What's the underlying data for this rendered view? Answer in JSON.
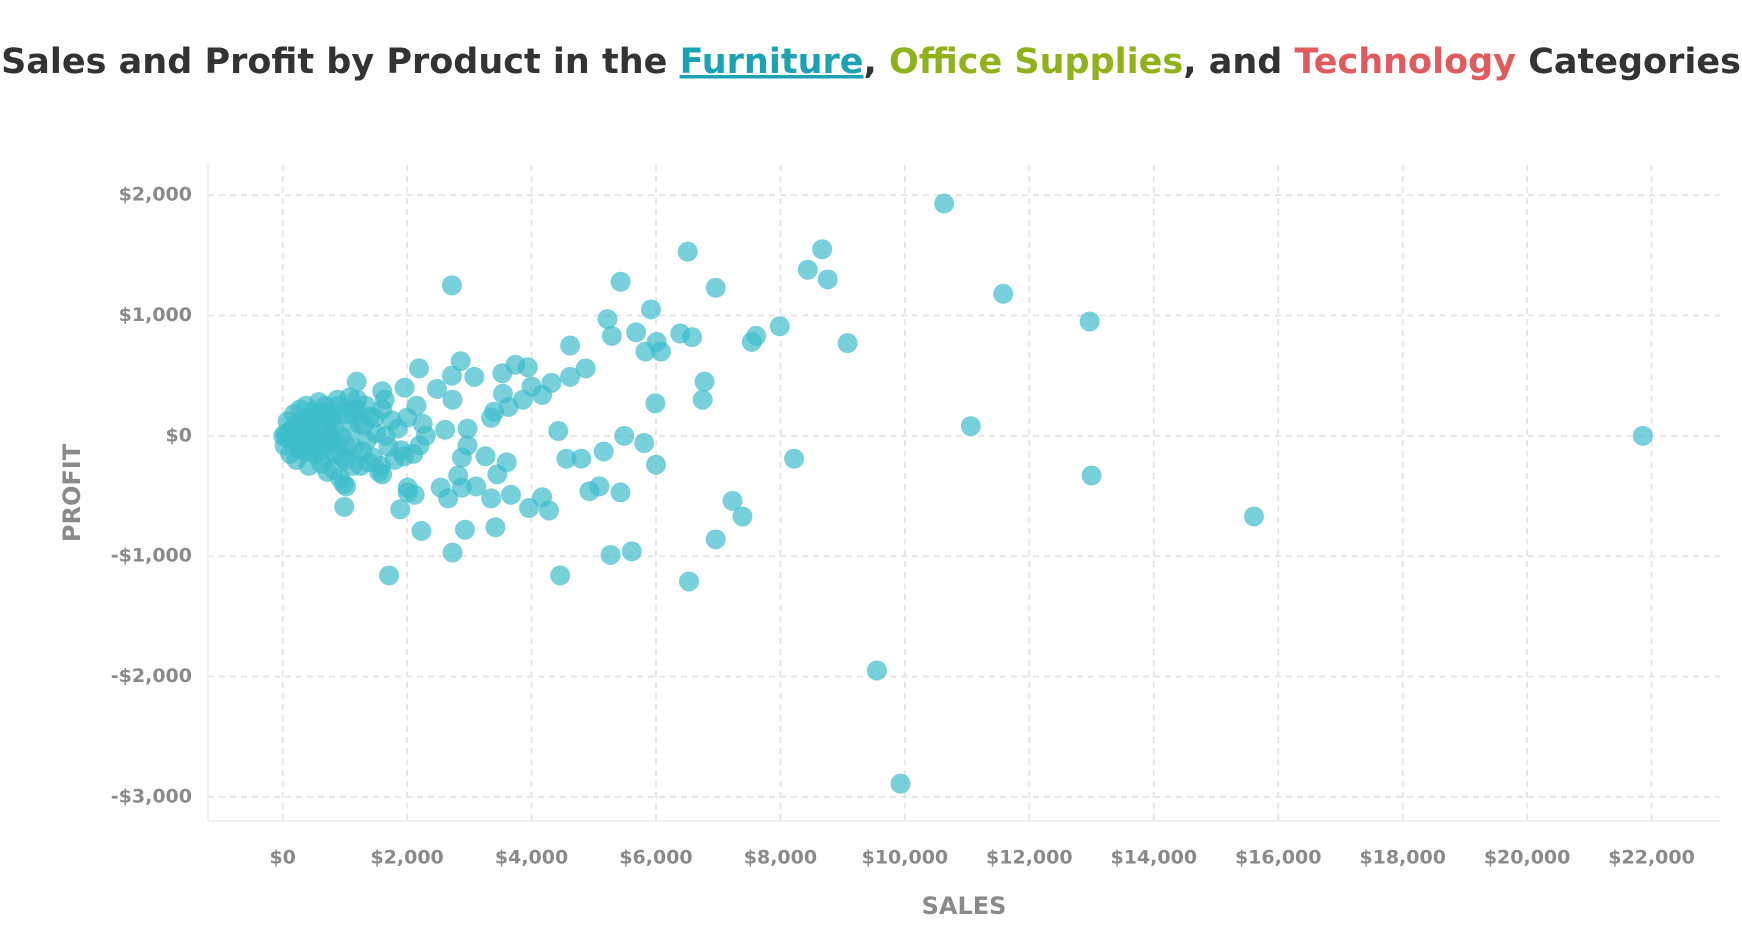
{
  "chart_data": {
    "type": "scatter",
    "title_segments": [
      {
        "text": "Sales and Profit by Product in the ",
        "color": "#333333"
      },
      {
        "text": "Furniture",
        "color": "#1ba3b3"
      },
      {
        "text": ", ",
        "color": "#333333"
      },
      {
        "text": "Office Supplies",
        "color": "#8fb21a"
      },
      {
        "text": ", and ",
        "color": "#333333"
      },
      {
        "text": "Technology",
        "color": "#e05a5e"
      },
      {
        "text": " Categories",
        "color": "#333333"
      }
    ],
    "x_label": "SALES",
    "y_label": "PROFIT",
    "xlim": [
      -1200,
      23100
    ],
    "ylim": [
      -3200,
      2250
    ],
    "xticks": [
      {
        "value": 0,
        "label": "$0"
      },
      {
        "value": 2000,
        "label": "$2,000"
      },
      {
        "value": 4000,
        "label": "$4,000"
      },
      {
        "value": 6000,
        "label": "$6,000"
      },
      {
        "value": 8000,
        "label": "$8,000"
      },
      {
        "value": 10000,
        "label": "$10,000"
      },
      {
        "value": 12000,
        "label": "$12,000"
      },
      {
        "value": 14000,
        "label": "$14,000"
      },
      {
        "value": 16000,
        "label": "$16,000"
      },
      {
        "value": 18000,
        "label": "$18,000"
      },
      {
        "value": 20000,
        "label": "$20,000"
      },
      {
        "value": 22000,
        "label": "$22,000"
      }
    ],
    "yticks": [
      {
        "value": 2000,
        "label": "$2,000"
      },
      {
        "value": 1000,
        "label": "$1,000"
      },
      {
        "value": 0,
        "label": "$0"
      },
      {
        "value": -1000,
        "label": "-$1,000"
      },
      {
        "value": -2000,
        "label": "-$2,000"
      },
      {
        "value": -3000,
        "label": "-$3,000"
      }
    ],
    "grid": true,
    "color": "#3dbccb",
    "x": [
      10630,
      6510,
      8670,
      8440,
      8760,
      2720,
      5430,
      6960,
      11580,
      12970,
      5920,
      5220,
      7990,
      6390,
      5680,
      5290,
      6580,
      7610,
      7540,
      6010,
      9080,
      5830,
      6080,
      4620,
      2860,
      3740,
      3940,
      4870,
      2190,
      2720,
      3080,
      3530,
      4620,
      6780,
      4320,
      4000,
      1190,
      3540,
      4170,
      3860,
      5990,
      6750,
      2730,
      2480,
      1960,
      1600,
      1640,
      3630,
      3350,
      3400,
      11060,
      21860,
      4430,
      5490,
      2970,
      5810,
      2610,
      2970,
      5160,
      4560,
      4800,
      6000,
      8220,
      3600,
      3260,
      2880,
      3450,
      2820,
      13000,
      1600,
      2010,
      2540,
      3110,
      2880,
      5090,
      5430,
      3670,
      4170,
      2010,
      2120,
      2660,
      3350,
      4930,
      7230,
      3960,
      4280,
      7390,
      15610,
      990,
      1890,
      2230,
      2930,
      3420,
      6960,
      2730,
      5270,
      5610,
      1710,
      4460,
      6530,
      9550,
      9930,
      50,
      100,
      150,
      200,
      250,
      300,
      350,
      400,
      450,
      500,
      550,
      600,
      650,
      700,
      750,
      800,
      850,
      900,
      950,
      1000,
      1050,
      1100,
      1150,
      1200,
      1250,
      1300,
      1350,
      1400,
      1450,
      1500,
      1550,
      1600,
      1700,
      1750,
      1800,
      1850,
      1900,
      2000,
      2100,
      2150,
      2200,
      2250,
      2300,
      30,
      80,
      120,
      180,
      220,
      280,
      320,
      380,
      420,
      480,
      520,
      580,
      620,
      680,
      720,
      780,
      820,
      880,
      920,
      980,
      1020,
      1080,
      1120,
      1180,
      10,
      60,
      130,
      170,
      230,
      270,
      330,
      370,
      430,
      470,
      530,
      570,
      630,
      670,
      730,
      770,
      830,
      870,
      930,
      970,
      1030,
      1130,
      1230,
      1280,
      1330,
      1380,
      1480,
      1580,
      1650,
      1950
    ],
    "values": [
      1930,
      1530,
      1550,
      1380,
      1300,
      1250,
      1280,
      1230,
      1180,
      950,
      1050,
      970,
      910,
      850,
      860,
      830,
      820,
      830,
      780,
      780,
      770,
      700,
      700,
      750,
      620,
      590,
      570,
      560,
      560,
      500,
      490,
      520,
      490,
      450,
      440,
      410,
      450,
      350,
      340,
      300,
      270,
      300,
      300,
      390,
      400,
      370,
      300,
      240,
      150,
      200,
      80,
      0,
      40,
      0,
      60,
      -60,
      50,
      -80,
      -130,
      -190,
      -190,
      -240,
      -190,
      -220,
      -170,
      -180,
      -320,
      -330,
      -330,
      -320,
      -430,
      -430,
      -420,
      -430,
      -420,
      -470,
      -490,
      -510,
      -470,
      -490,
      -520,
      -520,
      -460,
      -540,
      -600,
      -620,
      -670,
      -670,
      -590,
      -610,
      -790,
      -780,
      -760,
      -860,
      -970,
      -990,
      -960,
      -1160,
      -1160,
      -1210,
      -1950,
      -2890,
      20,
      -30,
      60,
      10,
      -50,
      100,
      40,
      -80,
      150,
      -20,
      80,
      -120,
      200,
      30,
      -60,
      120,
      -150,
      250,
      -10,
      -200,
      180,
      50,
      -100,
      300,
      -250,
      90,
      -40,
      160,
      -180,
      20,
      -300,
      220,
      -90,
      130,
      -200,
      60,
      -120,
      150,
      -150,
      250,
      -80,
      100,
      0,
      -80,
      120,
      -150,
      180,
      -200,
      220,
      -100,
      250,
      -250,
      200,
      -150,
      280,
      -230,
      250,
      -300,
      -20,
      -280,
      300,
      -350,
      -400,
      -420,
      320,
      -250,
      220,
      0,
      -10,
      30,
      -20,
      90,
      -110,
      140,
      -130,
      70,
      -70,
      190,
      40,
      -40,
      -170,
      130,
      170,
      70,
      -60,
      180,
      -180,
      -90,
      200,
      100,
      -130,
      250,
      -220,
      150,
      -250,
      0,
      -170
    ]
  }
}
